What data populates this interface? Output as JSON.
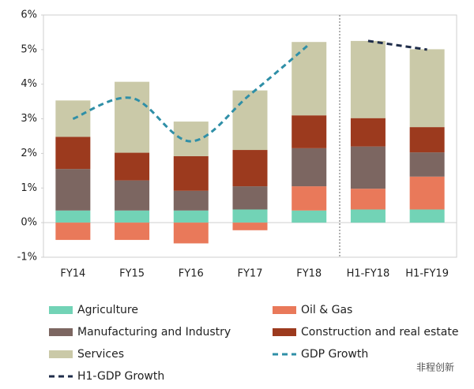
{
  "chart_data": {
    "type": "stacked-bar-line",
    "categories": [
      "FY14",
      "FY15",
      "FY16",
      "FY17",
      "FY18",
      "H1-FY18",
      "H1-FY19"
    ],
    "series": [
      {
        "name": "Agriculture",
        "color": "#72d3b6",
        "kind": "bar",
        "values": [
          0.35,
          0.35,
          0.35,
          0.38,
          0.35,
          0.38,
          0.38
        ]
      },
      {
        "name": "Oil & Gas",
        "color": "#e9795a",
        "kind": "bar",
        "values": [
          -0.5,
          -0.5,
          -0.6,
          -0.22,
          0.7,
          0.6,
          0.95
        ]
      },
      {
        "name": "Manufacturing and Industry",
        "color": "#7c6661",
        "kind": "bar",
        "values": [
          1.2,
          0.87,
          0.57,
          0.67,
          1.1,
          1.22,
          0.7
        ]
      },
      {
        "name": "Construction and real estate",
        "color": "#9c3a1e",
        "kind": "bar",
        "values": [
          0.93,
          0.8,
          1.0,
          1.05,
          0.95,
          0.82,
          0.73
        ]
      },
      {
        "name": "Services",
        "color": "#cac9a8",
        "kind": "bar",
        "values": [
          1.05,
          2.05,
          1.0,
          1.72,
          2.12,
          2.23,
          2.25
        ]
      },
      {
        "name": "GDP Growth",
        "color": "#2f8fa7",
        "kind": "line",
        "values": [
          3.0,
          3.6,
          2.35,
          3.7,
          5.15,
          null,
          null
        ]
      },
      {
        "name": "H1-GDP Growth",
        "color": "#1f2d4a",
        "kind": "line",
        "values": [
          null,
          null,
          null,
          null,
          null,
          5.25,
          5.0
        ]
      }
    ],
    "ylim": [
      -1,
      6
    ],
    "yticks": [
      {
        "value": -1,
        "label": "-1%"
      },
      {
        "value": 0,
        "label": "0%"
      },
      {
        "value": 1,
        "label": "1%"
      },
      {
        "value": 2,
        "label": "2%"
      },
      {
        "value": 3,
        "label": "3%"
      },
      {
        "value": 4,
        "label": "4%"
      },
      {
        "value": 5,
        "label": "5%"
      },
      {
        "value": 6,
        "label": "6%"
      }
    ],
    "watermark": "非程创新"
  }
}
